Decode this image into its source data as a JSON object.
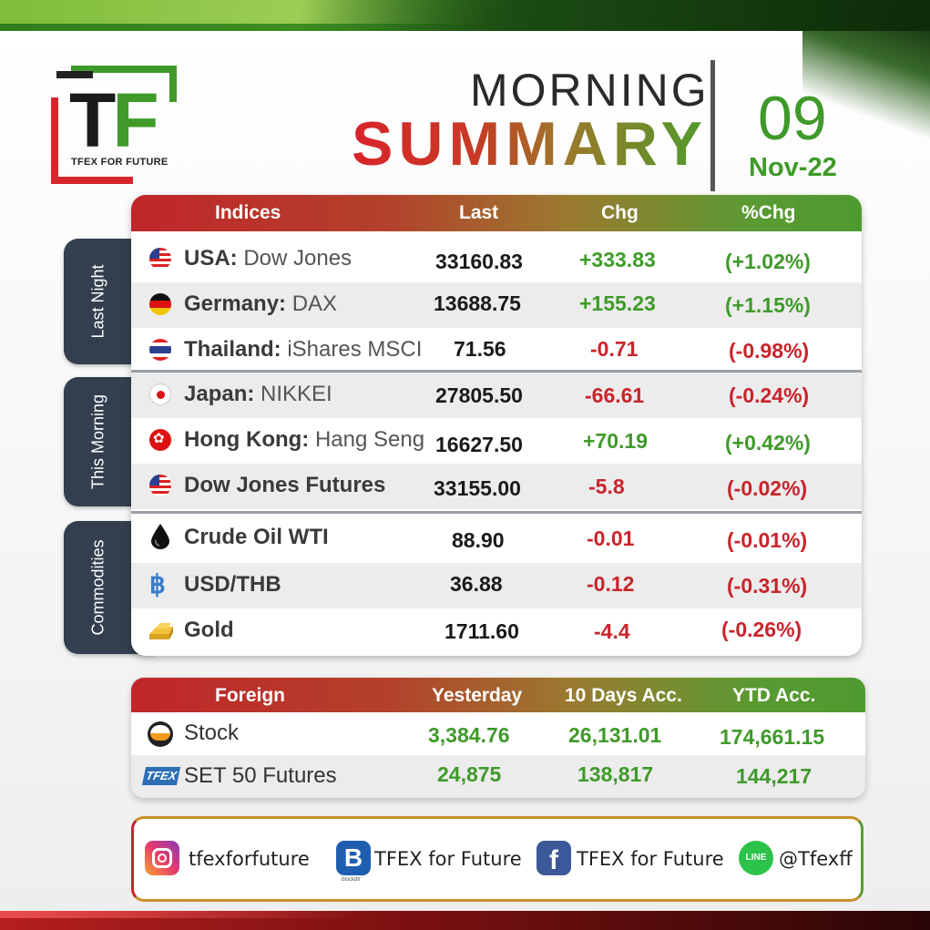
{
  "logo": {
    "letter_t": "T",
    "letter_f": "F",
    "tagline": "TFEX FOR FUTURE"
  },
  "title": {
    "line1": "MORNING",
    "line2": "SUMMARY"
  },
  "date": {
    "day": "09",
    "month": "Nov-22"
  },
  "sections": {
    "last_night": "Last Night",
    "this_morning": "This Morning",
    "commodities": "Commodities"
  },
  "main_table": {
    "headers": {
      "indices": "Indices",
      "last": "Last",
      "chg": "Chg",
      "pct": "%Chg"
    },
    "rows": [
      {
        "country": "USA:",
        "index": "Dow Jones",
        "last": "33160.83",
        "chg": "+333.83",
        "pct": "(+1.02%)",
        "icon": "usa-flag-icon",
        "dir": "pos"
      },
      {
        "country": "Germany:",
        "index": "DAX",
        "last": "13688.75",
        "chg": "+155.23",
        "pct": "(+1.15%)",
        "icon": "germany-flag-icon",
        "dir": "pos"
      },
      {
        "country": "Thailand:",
        "index": "iShares MSCI",
        "last": "71.56",
        "chg": "-0.71",
        "pct": "(-0.98%)",
        "icon": "thailand-flag-icon",
        "dir": "neg"
      },
      {
        "country": "Japan:",
        "index": "NIKKEI",
        "last": "27805.50",
        "chg": "-66.61",
        "pct": "(-0.24%)",
        "icon": "japan-flag-icon",
        "dir": "neg"
      },
      {
        "country": "Hong Kong:",
        "index": "Hang Seng",
        "last": "16627.50",
        "chg": "+70.19",
        "pct": "(+0.42%)",
        "icon": "hong-kong-flag-icon",
        "dir": "pos"
      },
      {
        "country": "Dow Jones Futures",
        "index": "",
        "last": "33155.00",
        "chg": "-5.8",
        "pct": "(-0.02%)",
        "icon": "usa-flag-icon",
        "dir": "neg"
      },
      {
        "country": "Crude Oil WTI",
        "index": "",
        "last": "88.90",
        "chg": "-0.01",
        "pct": "(-0.01%)",
        "icon": "oil-drop-icon",
        "dir": "neg"
      },
      {
        "country": "USD/THB",
        "index": "",
        "last": "36.88",
        "chg": "-0.12",
        "pct": "(-0.31%)",
        "icon": "baht-icon",
        "dir": "neg"
      },
      {
        "country": "Gold",
        "index": "",
        "last": "1711.60",
        "chg": "-4.4",
        "pct": "(-0.26%)",
        "icon": "gold-bar-icon",
        "dir": "neg"
      }
    ]
  },
  "foreign_table": {
    "headers": {
      "foreign": "Foreign",
      "yesterday": "Yesterday",
      "ten_days": "10 Days Acc.",
      "ytd": "YTD Acc."
    },
    "rows": [
      {
        "name": "Stock",
        "yesterday": "3,384.76",
        "ten_days": "26,131.01",
        "ytd": "174,661.15",
        "icon": "set-logo-icon"
      },
      {
        "name": "SET 50 Futures",
        "yesterday": "24,875",
        "ten_days": "138,817",
        "ytd": "144,217",
        "icon": "tfex-logo-icon"
      }
    ],
    "tfex_badge": "TFEX"
  },
  "social": {
    "instagram": "tfexforfuture",
    "blockdit": "TFEX for Future",
    "blockdit_letter": "B",
    "blockdit_caption": "blockdit",
    "facebook": "TFEX for Future",
    "facebook_letter": "f",
    "line": "@Tfexff",
    "line_badge": "LINE"
  },
  "colors": {
    "green": "#3f9a2a",
    "red": "#c9242b",
    "tab": "#333f4e"
  }
}
